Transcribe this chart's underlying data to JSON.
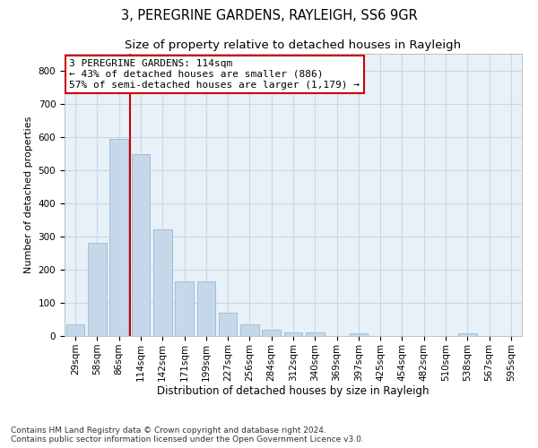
{
  "title": "3, PEREGRINE GARDENS, RAYLEIGH, SS6 9GR",
  "subtitle": "Size of property relative to detached houses in Rayleigh",
  "xlabel": "Distribution of detached houses by size in Rayleigh",
  "ylabel": "Number of detached properties",
  "categories": [
    "29sqm",
    "58sqm",
    "86sqm",
    "114sqm",
    "142sqm",
    "171sqm",
    "199sqm",
    "227sqm",
    "256sqm",
    "284sqm",
    "312sqm",
    "340sqm",
    "369sqm",
    "397sqm",
    "425sqm",
    "454sqm",
    "482sqm",
    "510sqm",
    "538sqm",
    "567sqm",
    "595sqm"
  ],
  "values": [
    35,
    280,
    595,
    548,
    320,
    165,
    165,
    70,
    35,
    18,
    10,
    10,
    0,
    8,
    0,
    0,
    0,
    0,
    8,
    0,
    0
  ],
  "bar_color": "#c5d8ea",
  "bar_edge_color": "#9ab8d0",
  "vline_x_index": 3,
  "vline_color": "#cc0000",
  "annotation_text": "3 PEREGRINE GARDENS: 114sqm\n← 43% of detached houses are smaller (886)\n57% of semi-detached houses are larger (1,179) →",
  "annotation_box_color": "white",
  "annotation_box_edge_color": "#cc0000",
  "ylim": [
    0,
    850
  ],
  "yticks": [
    0,
    100,
    200,
    300,
    400,
    500,
    600,
    700,
    800
  ],
  "grid_color": "#c8d8e8",
  "background_color": "#e8f0f8",
  "footer": "Contains HM Land Registry data © Crown copyright and database right 2024.\nContains public sector information licensed under the Open Government Licence v3.0.",
  "title_fontsize": 10.5,
  "subtitle_fontsize": 9.5,
  "xlabel_fontsize": 8.5,
  "ylabel_fontsize": 8,
  "tick_fontsize": 7.5,
  "annotation_fontsize": 8,
  "footer_fontsize": 6.5
}
